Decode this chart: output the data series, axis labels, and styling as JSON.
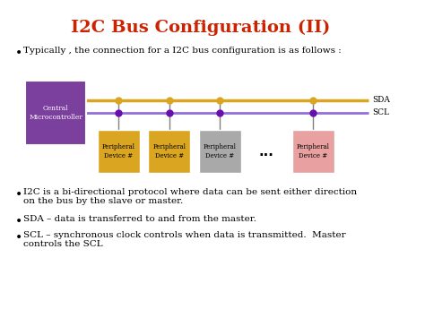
{
  "title": "I2C Bus Configuration (II)",
  "title_color": "#CC2200",
  "title_fontsize": 14,
  "bg_color": "#FFFFFF",
  "bullet1": "Typically , the connection for a I2C bus configuration is as follows :",
  "bullet2": "I2C is a bi-directional protocol where data can be sent either direction\non the bus by the slave or master.",
  "bullet3": "SDA – data is transferred to and from the master.",
  "bullet4": "SCL – synchronous clock controls when data is transmitted.  Master\ncontrols the SCL",
  "central_box_color": "#7B3F9E",
  "central_box_label": "Central\nMicrocontroller",
  "peripheral_colors": [
    "#DAA520",
    "#DAA520",
    "#A9A9A9",
    "#E8A0A0"
  ],
  "peripheral_label": "Peripheral\nDevice #",
  "sda_color": "#DAA520",
  "scl_color": "#9370DB",
  "node_sda_color": "#DAA520",
  "node_scl_color": "#6A0DAD",
  "sda_label": "SDA",
  "scl_label": "SCL"
}
